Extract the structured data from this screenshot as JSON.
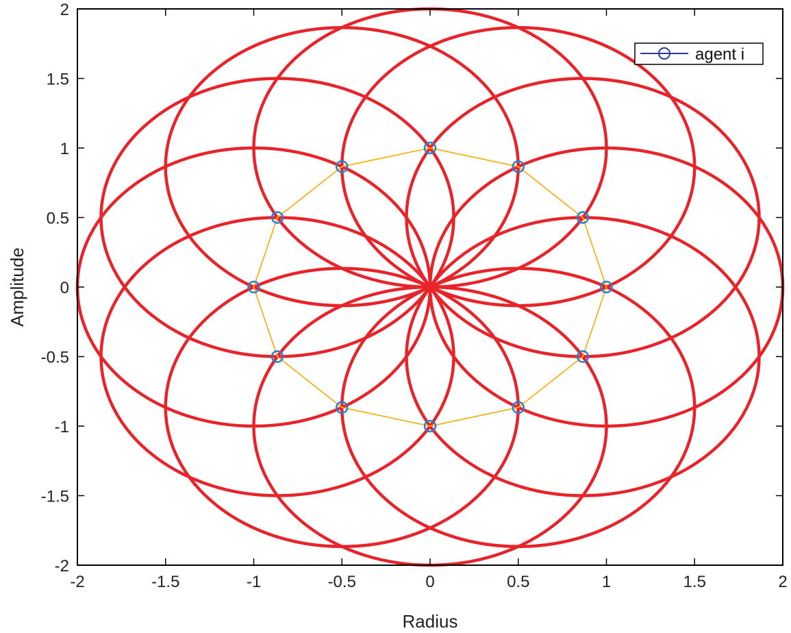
{
  "chart_data": {
    "type": "line",
    "title": "",
    "xlabel": "Radius",
    "ylabel": "Amplitude",
    "xlim": [
      -2,
      2
    ],
    "ylim": [
      -2,
      2
    ],
    "xticks": [
      "-2",
      "-1.5",
      "-1",
      "-0.5",
      "0",
      "0.5",
      "1",
      "1.5",
      "2"
    ],
    "yticks": [
      "2",
      "1.5",
      "1",
      "0.5",
      "0",
      "-0.5",
      "-1",
      "-1.5",
      "-2"
    ],
    "grid": false,
    "legend": {
      "position": "top-right",
      "entries": [
        "agent i"
      ]
    },
    "agents": {
      "name": "agent i",
      "x": [
        1,
        0.866,
        0.5,
        0,
        -0.5,
        -0.866,
        -1,
        -0.866,
        -0.5,
        0,
        0.5,
        0.866
      ],
      "y": [
        0,
        0.5,
        0.866,
        1,
        0.866,
        0.5,
        0,
        -0.5,
        -0.866,
        -1,
        -0.866,
        -0.5
      ],
      "marker": "circle",
      "color": "#2a7fd0"
    },
    "ring_edges_color": "#f5b21a",
    "circles": {
      "centers": "agent positions",
      "radius": 1,
      "color": "#e8242b"
    }
  }
}
